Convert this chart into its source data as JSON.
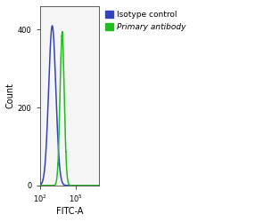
{
  "title": "",
  "xlabel": "FITC-A",
  "ylabel": "Count",
  "xlim_log": [
    2,
    7
  ],
  "ylim": [
    0,
    460
  ],
  "yticks": [
    0,
    200,
    400
  ],
  "fig_bg_color": "#ffffff",
  "plot_bg_color": "#f5f5f5",
  "blue_color": "#3344bb",
  "green_color": "#22bb22",
  "blue_peak_log": 3.05,
  "blue_peak_height": 410,
  "blue_sigma": 0.3,
  "green_peak_log": 3.88,
  "green_peak_height": 390,
  "green_sigma": 0.18,
  "legend_labels": [
    "Isotype control",
    "Primary antibody"
  ],
  "legend_colors": [
    "#3344bb",
    "#22bb22"
  ],
  "font_size": 7,
  "tick_fontsize": 6,
  "linewidth": 1.1
}
